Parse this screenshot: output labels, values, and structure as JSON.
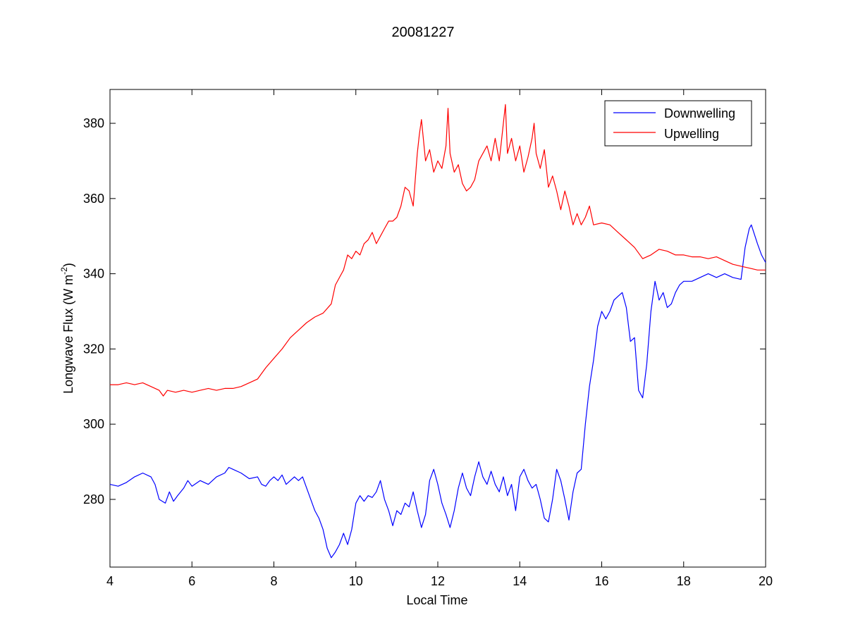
{
  "chart_data": {
    "type": "line",
    "title": "20081227",
    "xlabel": "Local Time",
    "ylabel": {
      "main": "Longwave Flux (W m",
      "superscript": "-2",
      "close": ")"
    },
    "xlim": [
      4,
      20
    ],
    "ylim": [
      262,
      389
    ],
    "xticks": [
      4,
      6,
      8,
      10,
      12,
      14,
      16,
      18,
      20
    ],
    "yticks": [
      280,
      300,
      320,
      340,
      360,
      380
    ],
    "grid": false,
    "legend_position": "top-right",
    "series": [
      {
        "name": "Downwelling",
        "color": "#0000ff",
        "points": [
          [
            4.0,
            284
          ],
          [
            4.2,
            283.5
          ],
          [
            4.4,
            284.5
          ],
          [
            4.6,
            286
          ],
          [
            4.8,
            287
          ],
          [
            5.0,
            286
          ],
          [
            5.1,
            284
          ],
          [
            5.2,
            280
          ],
          [
            5.35,
            279
          ],
          [
            5.45,
            282
          ],
          [
            5.55,
            279.5
          ],
          [
            5.65,
            281
          ],
          [
            5.8,
            283
          ],
          [
            5.9,
            285
          ],
          [
            6.0,
            283.5
          ],
          [
            6.2,
            285
          ],
          [
            6.4,
            284
          ],
          [
            6.6,
            286
          ],
          [
            6.8,
            287
          ],
          [
            6.9,
            288.5
          ],
          [
            7.0,
            288
          ],
          [
            7.2,
            287
          ],
          [
            7.4,
            285.5
          ],
          [
            7.6,
            286
          ],
          [
            7.7,
            284
          ],
          [
            7.8,
            283.5
          ],
          [
            7.9,
            285
          ],
          [
            8.0,
            286
          ],
          [
            8.1,
            285
          ],
          [
            8.2,
            286.5
          ],
          [
            8.3,
            284
          ],
          [
            8.4,
            285
          ],
          [
            8.5,
            286
          ],
          [
            8.6,
            285
          ],
          [
            8.7,
            286
          ],
          [
            8.8,
            283
          ],
          [
            8.9,
            280
          ],
          [
            9.0,
            277
          ],
          [
            9.1,
            275
          ],
          [
            9.2,
            272
          ],
          [
            9.3,
            267
          ],
          [
            9.4,
            264.5
          ],
          [
            9.5,
            266
          ],
          [
            9.6,
            268
          ],
          [
            9.7,
            271
          ],
          [
            9.8,
            268
          ],
          [
            9.9,
            272
          ],
          [
            10.0,
            279
          ],
          [
            10.1,
            281
          ],
          [
            10.2,
            279.5
          ],
          [
            10.3,
            281
          ],
          [
            10.4,
            280.5
          ],
          [
            10.5,
            282
          ],
          [
            10.6,
            285
          ],
          [
            10.7,
            280
          ],
          [
            10.8,
            277
          ],
          [
            10.9,
            273
          ],
          [
            11.0,
            277
          ],
          [
            11.1,
            276
          ],
          [
            11.2,
            279
          ],
          [
            11.3,
            278
          ],
          [
            11.4,
            282
          ],
          [
            11.5,
            277
          ],
          [
            11.6,
            272.5
          ],
          [
            11.7,
            276
          ],
          [
            11.8,
            285
          ],
          [
            11.9,
            288
          ],
          [
            12.0,
            284
          ],
          [
            12.1,
            279
          ],
          [
            12.2,
            276
          ],
          [
            12.3,
            272.5
          ],
          [
            12.4,
            277
          ],
          [
            12.5,
            283
          ],
          [
            12.6,
            287
          ],
          [
            12.7,
            283
          ],
          [
            12.8,
            281
          ],
          [
            12.9,
            286
          ],
          [
            13.0,
            290
          ],
          [
            13.1,
            286
          ],
          [
            13.2,
            284
          ],
          [
            13.3,
            287.5
          ],
          [
            13.4,
            284
          ],
          [
            13.5,
            282
          ],
          [
            13.6,
            286
          ],
          [
            13.7,
            281
          ],
          [
            13.8,
            284
          ],
          [
            13.9,
            277
          ],
          [
            14.0,
            286
          ],
          [
            14.1,
            288
          ],
          [
            14.2,
            285
          ],
          [
            14.3,
            283
          ],
          [
            14.4,
            284
          ],
          [
            14.5,
            280
          ],
          [
            14.6,
            275
          ],
          [
            14.7,
            274
          ],
          [
            14.8,
            280
          ],
          [
            14.9,
            288
          ],
          [
            15.0,
            285
          ],
          [
            15.1,
            280
          ],
          [
            15.2,
            274.5
          ],
          [
            15.3,
            282
          ],
          [
            15.4,
            287
          ],
          [
            15.5,
            288
          ],
          [
            15.6,
            300
          ],
          [
            15.7,
            310
          ],
          [
            15.8,
            317
          ],
          [
            15.9,
            326
          ],
          [
            16.0,
            330
          ],
          [
            16.1,
            328
          ],
          [
            16.2,
            330
          ],
          [
            16.3,
            333
          ],
          [
            16.4,
            334
          ],
          [
            16.5,
            335
          ],
          [
            16.6,
            331
          ],
          [
            16.7,
            322
          ],
          [
            16.8,
            323
          ],
          [
            16.9,
            309
          ],
          [
            17.0,
            307
          ],
          [
            17.1,
            316
          ],
          [
            17.2,
            330
          ],
          [
            17.3,
            338
          ],
          [
            17.4,
            333
          ],
          [
            17.5,
            335
          ],
          [
            17.6,
            331
          ],
          [
            17.7,
            332
          ],
          [
            17.8,
            335
          ],
          [
            17.9,
            337
          ],
          [
            18.0,
            338
          ],
          [
            18.2,
            338
          ],
          [
            18.4,
            339
          ],
          [
            18.6,
            340
          ],
          [
            18.8,
            339
          ],
          [
            19.0,
            340
          ],
          [
            19.2,
            339
          ],
          [
            19.4,
            338.5
          ],
          [
            19.5,
            347
          ],
          [
            19.6,
            352
          ],
          [
            19.65,
            353
          ],
          [
            19.8,
            348
          ],
          [
            19.9,
            345
          ],
          [
            20.0,
            343
          ]
        ]
      },
      {
        "name": "Upwelling",
        "color": "#ff0000",
        "points": [
          [
            4.0,
            310.5
          ],
          [
            4.2,
            310.5
          ],
          [
            4.4,
            311
          ],
          [
            4.6,
            310.5
          ],
          [
            4.8,
            311
          ],
          [
            5.0,
            310
          ],
          [
            5.2,
            309
          ],
          [
            5.3,
            307.5
          ],
          [
            5.4,
            309
          ],
          [
            5.6,
            308.5
          ],
          [
            5.8,
            309
          ],
          [
            6.0,
            308.5
          ],
          [
            6.2,
            309
          ],
          [
            6.4,
            309.5
          ],
          [
            6.6,
            309
          ],
          [
            6.8,
            309.5
          ],
          [
            7.0,
            309.5
          ],
          [
            7.2,
            310
          ],
          [
            7.4,
            311
          ],
          [
            7.6,
            312
          ],
          [
            7.8,
            315
          ],
          [
            8.0,
            317.5
          ],
          [
            8.2,
            320
          ],
          [
            8.4,
            323
          ],
          [
            8.6,
            325
          ],
          [
            8.8,
            327
          ],
          [
            9.0,
            328.5
          ],
          [
            9.2,
            329.5
          ],
          [
            9.4,
            332
          ],
          [
            9.5,
            337
          ],
          [
            9.6,
            339
          ],
          [
            9.7,
            341
          ],
          [
            9.8,
            345
          ],
          [
            9.9,
            344
          ],
          [
            10.0,
            346
          ],
          [
            10.1,
            345
          ],
          [
            10.2,
            348
          ],
          [
            10.3,
            349
          ],
          [
            10.4,
            351
          ],
          [
            10.5,
            348
          ],
          [
            10.6,
            350
          ],
          [
            10.7,
            352
          ],
          [
            10.8,
            354
          ],
          [
            10.9,
            354
          ],
          [
            11.0,
            355
          ],
          [
            11.1,
            358
          ],
          [
            11.2,
            363
          ],
          [
            11.3,
            362
          ],
          [
            11.4,
            358
          ],
          [
            11.5,
            372
          ],
          [
            11.55,
            377
          ],
          [
            11.6,
            381
          ],
          [
            11.7,
            370
          ],
          [
            11.8,
            373
          ],
          [
            11.9,
            367
          ],
          [
            12.0,
            370
          ],
          [
            12.1,
            368
          ],
          [
            12.2,
            374
          ],
          [
            12.25,
            384
          ],
          [
            12.3,
            372
          ],
          [
            12.4,
            367
          ],
          [
            12.5,
            369
          ],
          [
            12.6,
            364
          ],
          [
            12.7,
            362
          ],
          [
            12.8,
            363
          ],
          [
            12.9,
            365
          ],
          [
            13.0,
            370
          ],
          [
            13.1,
            372
          ],
          [
            13.2,
            374
          ],
          [
            13.3,
            370
          ],
          [
            13.4,
            376
          ],
          [
            13.5,
            370
          ],
          [
            13.6,
            380
          ],
          [
            13.65,
            385
          ],
          [
            13.7,
            372
          ],
          [
            13.8,
            376
          ],
          [
            13.9,
            370
          ],
          [
            14.0,
            374
          ],
          [
            14.1,
            367
          ],
          [
            14.2,
            371
          ],
          [
            14.3,
            376
          ],
          [
            14.35,
            380
          ],
          [
            14.4,
            372
          ],
          [
            14.5,
            368
          ],
          [
            14.6,
            373
          ],
          [
            14.7,
            363
          ],
          [
            14.8,
            366
          ],
          [
            14.9,
            362
          ],
          [
            15.0,
            357
          ],
          [
            15.1,
            362
          ],
          [
            15.2,
            358
          ],
          [
            15.3,
            353
          ],
          [
            15.4,
            356
          ],
          [
            15.5,
            353
          ],
          [
            15.6,
            355
          ],
          [
            15.7,
            358
          ],
          [
            15.8,
            353
          ],
          [
            16.0,
            353.5
          ],
          [
            16.2,
            353
          ],
          [
            16.4,
            351
          ],
          [
            16.6,
            349
          ],
          [
            16.8,
            347
          ],
          [
            17.0,
            344
          ],
          [
            17.2,
            345
          ],
          [
            17.4,
            346.5
          ],
          [
            17.6,
            346
          ],
          [
            17.8,
            345
          ],
          [
            18.0,
            345
          ],
          [
            18.2,
            344.5
          ],
          [
            18.4,
            344.5
          ],
          [
            18.6,
            344
          ],
          [
            18.8,
            344.5
          ],
          [
            19.0,
            343.5
          ],
          [
            19.2,
            342.5
          ],
          [
            19.4,
            342
          ],
          [
            19.6,
            341.5
          ],
          [
            19.8,
            341
          ],
          [
            20.0,
            341
          ]
        ]
      }
    ]
  }
}
